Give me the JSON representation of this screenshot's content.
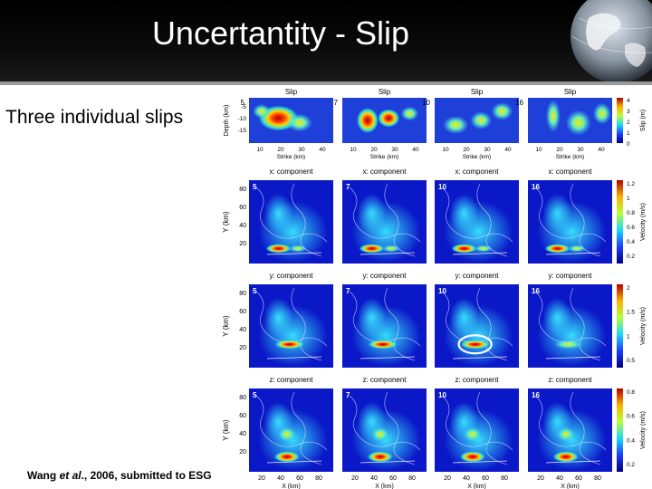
{
  "slide": {
    "title": "Uncertantity - Slip",
    "subtitle": "Three individual slips",
    "citation": {
      "prefix": "Wang ",
      "etal": "et al",
      "suffix": "., 2006, submitted to ESG"
    }
  },
  "figure": {
    "slip_row": {
      "panel_title": "Slip",
      "panel_ids": [
        "5",
        "7",
        "10",
        "16"
      ],
      "y_label": "Depth (km)",
      "y_ticks": [
        "-5",
        "-10",
        "-15"
      ],
      "x_label": "Strike (km)",
      "x_ticks": [
        "10",
        "20",
        "30",
        "40"
      ],
      "colorbar_label": "Slip (m)",
      "colorbar_ticks": [
        "4",
        "3",
        "2",
        "1",
        "0"
      ]
    },
    "velocity_rows": [
      {
        "component_label": "x: component",
        "panel_ids": [
          "5",
          "7",
          "10",
          "16"
        ],
        "colorbar_label": "Velocity (m/s)",
        "colorbar_ticks": [
          "1.2",
          "1",
          "0.8",
          "0.6",
          "0.4",
          "0.2"
        ]
      },
      {
        "component_label": "y: component",
        "panel_ids": [
          "5",
          "7",
          "10",
          "16"
        ],
        "colorbar_label": "Velocity (m/s)",
        "colorbar_ticks": [
          "2",
          "1.5",
          "1",
          "0.5"
        ]
      },
      {
        "component_label": "z: component",
        "panel_ids": [
          "5",
          "7",
          "10",
          "16"
        ],
        "colorbar_label": "Velocity (m/s)",
        "colorbar_ticks": [
          "0.8",
          "0.6",
          "0.4",
          "0.2"
        ]
      }
    ],
    "velocity_y_label": "Y (km)",
    "velocity_y_ticks": [
      "80",
      "60",
      "40",
      "20"
    ],
    "velocity_x_label": "X (km)",
    "velocity_x_ticks": [
      "20",
      "40",
      "60",
      "80"
    ],
    "highlight": "ellipse around y-component hotspot in panel 10"
  },
  "colors": {
    "header_bg": "#000000",
    "title_text": "#ffffff",
    "panel_bg": "#1e3fd8",
    "hot": "#ff2a00",
    "warm": "#ffd400",
    "mid": "#2fe0d8"
  }
}
